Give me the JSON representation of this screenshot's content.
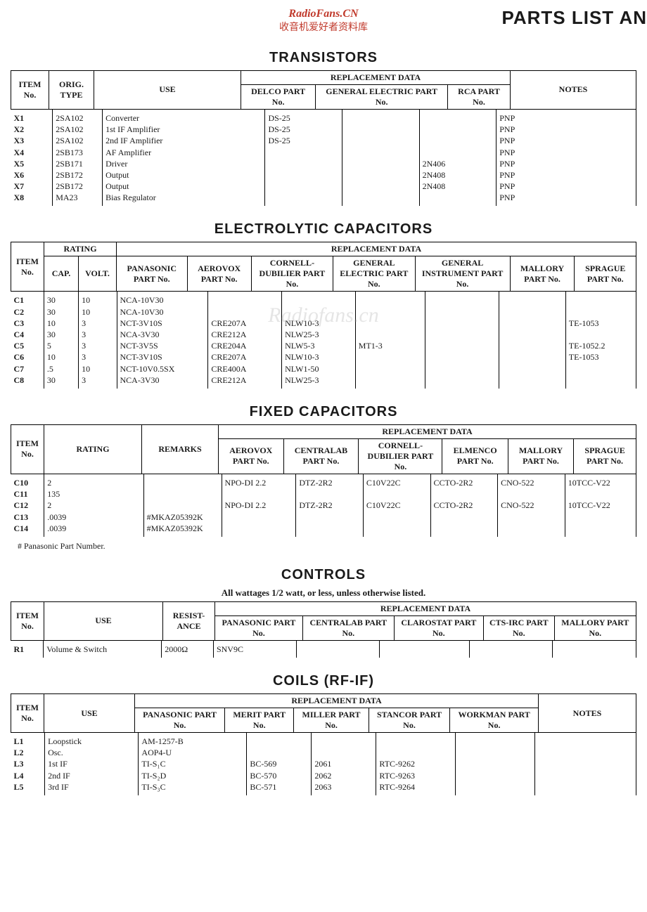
{
  "header": {
    "watermark_title": "RadioFans.CN",
    "watermark_sub": "收音机爱好者资料库",
    "page_title_right": "PARTS LIST AN"
  },
  "transistors": {
    "title": "TRANSISTORS",
    "headers": {
      "item": "ITEM No.",
      "orig": "ORIG. TYPE",
      "use": "USE",
      "repl": "REPLACEMENT DATA",
      "delco": "DELCO PART No.",
      "ge": "GENERAL ELECTRIC PART No.",
      "rca": "RCA PART No.",
      "notes": "NOTES"
    },
    "rows": [
      {
        "item": "X1",
        "orig": "2SA102",
        "use": "Converter",
        "delco": "DS-25",
        "ge": "",
        "rca": "",
        "notes": "PNP"
      },
      {
        "item": "X2",
        "orig": "2SA102",
        "use": "1st IF Amplifier",
        "delco": "DS-25",
        "ge": "",
        "rca": "",
        "notes": "PNP"
      },
      {
        "item": "X3",
        "orig": "2SA102",
        "use": "2nd IF Amplifier",
        "delco": "DS-25",
        "ge": "",
        "rca": "",
        "notes": "PNP"
      },
      {
        "item": "X4",
        "orig": "2SB173",
        "use": "AF Amplifier",
        "delco": "",
        "ge": "",
        "rca": "",
        "notes": "PNP"
      },
      {
        "item": "X5",
        "orig": "2SB171",
        "use": "Driver",
        "delco": "",
        "ge": "",
        "rca": "2N406",
        "notes": "PNP"
      },
      {
        "item": "X6",
        "orig": "2SB172",
        "use": "Output",
        "delco": "",
        "ge": "",
        "rca": "2N408",
        "notes": "PNP"
      },
      {
        "item": "X7",
        "orig": "2SB172",
        "use": "Output",
        "delco": "",
        "ge": "",
        "rca": "2N408",
        "notes": "PNP"
      },
      {
        "item": "X8",
        "orig": "MA23",
        "use": "Bias Regulator",
        "delco": "",
        "ge": "",
        "rca": "",
        "notes": "PNP"
      }
    ]
  },
  "electrolytic": {
    "title": "ELECTROLYTIC CAPACITORS",
    "headers": {
      "item": "ITEM No.",
      "rating": "RATING",
      "cap": "CAP.",
      "volt": "VOLT.",
      "repl": "REPLACEMENT DATA",
      "panasonic": "PANASONIC PART No.",
      "aerovox": "AEROVOX PART No.",
      "cornell": "CORNELL-DUBILIER PART No.",
      "ge": "GENERAL ELECTRIC PART No.",
      "gi": "GENERAL INSTRUMENT PART No.",
      "mallory": "MALLORY PART No.",
      "sprague": "SPRAGUE PART No."
    },
    "watermark": "Radiofans.cn",
    "rows": [
      {
        "item": "C1",
        "cap": "30",
        "volt": "10",
        "panasonic": "NCA-10V30",
        "aerovox": "",
        "cornell": "",
        "ge": "",
        "gi": "",
        "mallory": "",
        "sprague": ""
      },
      {
        "item": "C2",
        "cap": "30",
        "volt": "10",
        "panasonic": "NCA-10V30",
        "aerovox": "",
        "cornell": "",
        "ge": "",
        "gi": "",
        "mallory": "",
        "sprague": ""
      },
      {
        "item": "C3",
        "cap": "10",
        "volt": "3",
        "panasonic": "NCT-3V10S",
        "aerovox": "CRE207A",
        "cornell": "NLW10-3",
        "ge": "",
        "gi": "",
        "mallory": "",
        "sprague": "TE-1053"
      },
      {
        "item": "C4",
        "cap": "30",
        "volt": "3",
        "panasonic": "NCA-3V30",
        "aerovox": "CRE212A",
        "cornell": "NLW25-3",
        "ge": "",
        "gi": "",
        "mallory": "",
        "sprague": ""
      },
      {
        "item": "C5",
        "cap": "5",
        "volt": "3",
        "panasonic": "NCT-3V5S",
        "aerovox": "CRE204A",
        "cornell": "NLW5-3",
        "ge": "MT1-3",
        "gi": "",
        "mallory": "",
        "sprague": "TE-1052.2"
      },
      {
        "item": "C6",
        "cap": "10",
        "volt": "3",
        "panasonic": "NCT-3V10S",
        "aerovox": "CRE207A",
        "cornell": "NLW10-3",
        "ge": "",
        "gi": "",
        "mallory": "",
        "sprague": "TE-1053"
      },
      {
        "item": "C7",
        "cap": ".5",
        "volt": "10",
        "panasonic": "NCT-10V0.5SX",
        "aerovox": "CRE400A",
        "cornell": "NLW1-50",
        "ge": "",
        "gi": "",
        "mallory": "",
        "sprague": ""
      },
      {
        "item": "C8",
        "cap": "30",
        "volt": "3",
        "panasonic": "NCA-3V30",
        "aerovox": "CRE212A",
        "cornell": "NLW25-3",
        "ge": "",
        "gi": "",
        "mallory": "",
        "sprague": ""
      }
    ]
  },
  "fixed": {
    "title": "FIXED CAPACITORS",
    "headers": {
      "item": "ITEM No.",
      "rating": "RATING",
      "remarks": "REMARKS",
      "repl": "REPLACEMENT DATA",
      "aerovox": "AEROVOX PART No.",
      "centralab": "CENTRALAB PART No.",
      "cornell": "CORNELL-DUBILIER PART No.",
      "elmenco": "ELMENCO PART No.",
      "mallory": "MALLORY PART No.",
      "sprague": "SPRAGUE PART No."
    },
    "rows": [
      {
        "item": "C10",
        "rating": "2",
        "remarks": "",
        "aerovox": "NPO-DI 2.2",
        "centralab": "DTZ-2R2",
        "cornell": "C10V22C",
        "elmenco": "CCTO-2R2",
        "mallory": "CNO-522",
        "sprague": "10TCC-V22"
      },
      {
        "item": "C11",
        "rating": "135",
        "remarks": "",
        "aerovox": "",
        "centralab": "",
        "cornell": "",
        "elmenco": "",
        "mallory": "",
        "sprague": ""
      },
      {
        "item": "C12",
        "rating": "2",
        "remarks": "",
        "aerovox": "NPO-DI 2.2",
        "centralab": "DTZ-2R2",
        "cornell": "C10V22C",
        "elmenco": "CCTO-2R2",
        "mallory": "CNO-522",
        "sprague": "10TCC-V22"
      },
      {
        "item": "C13",
        "rating": ".0039",
        "remarks": "#MKAZ05392K",
        "aerovox": "",
        "centralab": "",
        "cornell": "",
        "elmenco": "",
        "mallory": "",
        "sprague": ""
      },
      {
        "item": "C14",
        "rating": ".0039",
        "remarks": "#MKAZ05392K",
        "aerovox": "",
        "centralab": "",
        "cornell": "",
        "elmenco": "",
        "mallory": "",
        "sprague": ""
      }
    ],
    "footnote": "# Panasonic Part Number."
  },
  "controls": {
    "title": "CONTROLS",
    "subtitle": "All wattages 1/2 watt, or less, unless otherwise listed.",
    "headers": {
      "item": "ITEM No.",
      "use": "USE",
      "resist": "RESIST-ANCE",
      "repl": "REPLACEMENT DATA",
      "panasonic": "PANASONIC PART No.",
      "centralab": "CENTRALAB PART No.",
      "clarostat": "CLAROSTAT PART No.",
      "cts": "CTS-IRC PART No.",
      "mallory": "MALLORY PART No."
    },
    "rows": [
      {
        "item": "R1",
        "use": "Volume & Switch",
        "resist": "2000Ω",
        "panasonic": "SNV9C",
        "centralab": "",
        "clarostat": "",
        "cts": "",
        "mallory": ""
      }
    ]
  },
  "coils": {
    "title": "COILS (RF-IF)",
    "headers": {
      "item": "ITEM No.",
      "use": "USE",
      "repl": "REPLACEMENT DATA",
      "panasonic": "PANASONIC PART No.",
      "merit": "MERIT PART No.",
      "miller": "MILLER PART No.",
      "stancor": "STANCOR PART No.",
      "workman": "WORKMAN PART No.",
      "notes": "NOTES"
    },
    "rows": [
      {
        "item": "L1",
        "use": "Loopstick",
        "panasonic": "AM-1257-B",
        "merit": "",
        "miller": "",
        "stancor": "",
        "workman": "",
        "notes": ""
      },
      {
        "item": "L2",
        "use": "Osc.",
        "panasonic": "AOP4-U",
        "merit": "",
        "miller": "",
        "stancor": "",
        "workman": "",
        "notes": ""
      },
      {
        "item": "L3",
        "use": "1st IF",
        "panasonic": "TI-S₁C",
        "merit": "BC-569",
        "miller": "2061",
        "stancor": "RTC-9262",
        "workman": "",
        "notes": ""
      },
      {
        "item": "L4",
        "use": "2nd IF",
        "panasonic": "TI-S₂D",
        "merit": "BC-570",
        "miller": "2062",
        "stancor": "RTC-9263",
        "workman": "",
        "notes": ""
      },
      {
        "item": "L5",
        "use": "3rd IF",
        "panasonic": "TI-S₃C",
        "merit": "BC-571",
        "miller": "2063",
        "stancor": "RTC-9264",
        "workman": "",
        "notes": ""
      }
    ]
  }
}
